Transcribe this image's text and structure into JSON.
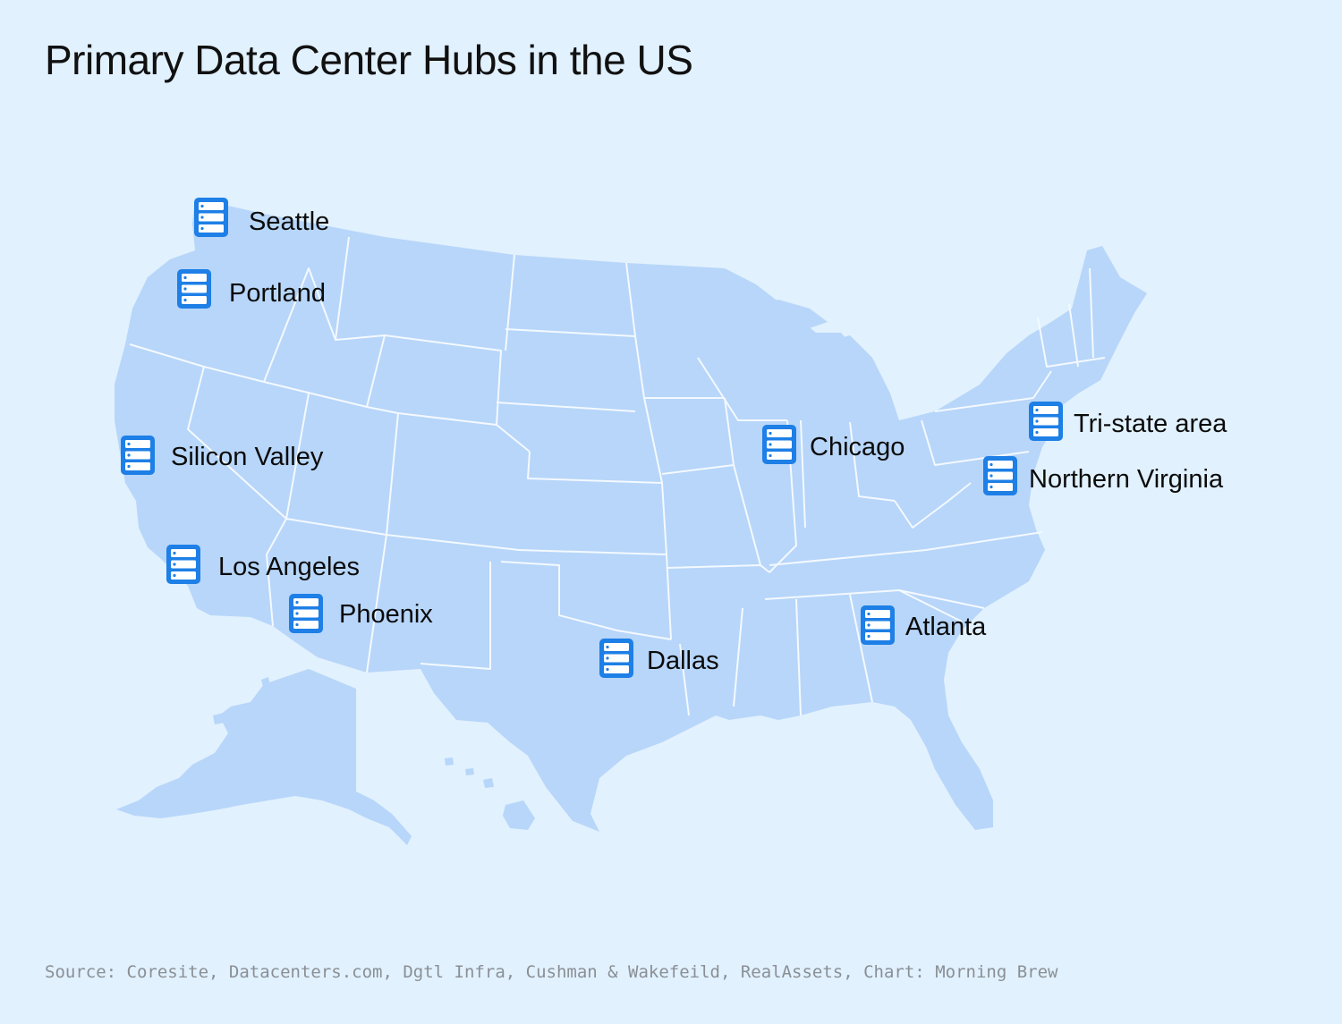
{
  "title": "Primary Data Center Hubs in the US",
  "source": "Source: Coresite, Datacenters.com, Dgtl Infra, Cushman & Wakefeild, RealAssets, Chart: Morning Brew",
  "colors": {
    "background": "#e1f1fe",
    "land": "#b7d6f9",
    "borders": "#f4f9ff",
    "icon": "#1e7fe6"
  },
  "marker_icon": "server-icon",
  "hubs": [
    {
      "id": "seattle",
      "label": "Seattle"
    },
    {
      "id": "portland",
      "label": "Portland"
    },
    {
      "id": "silicon-valley",
      "label": "Silicon Valley"
    },
    {
      "id": "los-angeles",
      "label": "Los Angeles"
    },
    {
      "id": "phoenix",
      "label": "Phoenix"
    },
    {
      "id": "dallas",
      "label": "Dallas"
    },
    {
      "id": "chicago",
      "label": "Chicago"
    },
    {
      "id": "atlanta",
      "label": "Atlanta"
    },
    {
      "id": "tri-state-area",
      "label": "Tri-state area"
    },
    {
      "id": "northern-virginia",
      "label": "Northern Virginia"
    }
  ]
}
